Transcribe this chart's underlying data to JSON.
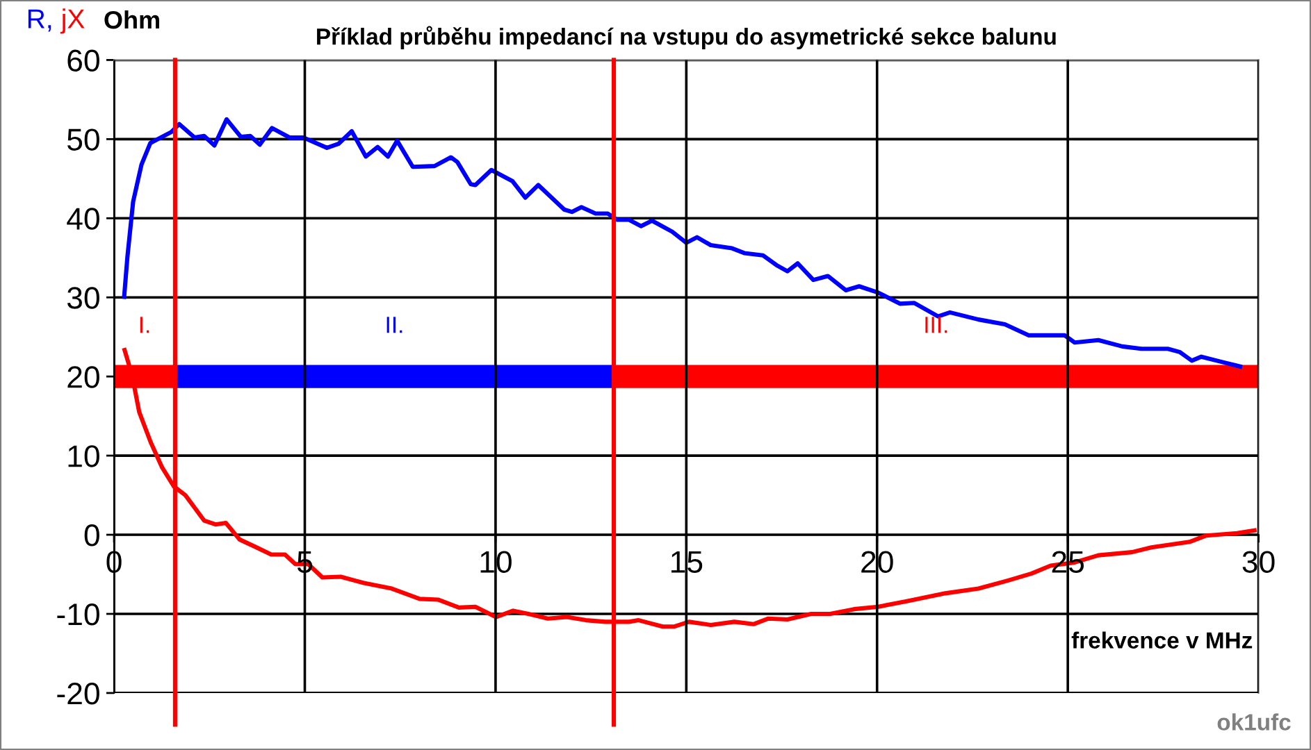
{
  "chart_data": {
    "type": "line",
    "title": "Příklad průběhu impedancí na vstupu do asymetrické sekce balunu",
    "xlabel": "frekvence v MHz",
    "ylabel": "Ohm",
    "xlim": [
      0,
      30
    ],
    "ylim": [
      -20,
      60
    ],
    "xticks": [
      0,
      5,
      10,
      15,
      20,
      25,
      30
    ],
    "yticks": [
      -20,
      -10,
      0,
      10,
      20,
      30,
      40,
      50,
      60
    ],
    "grid": true,
    "legend": "top left",
    "series": [
      {
        "name": "R,",
        "color": "#0000ff",
        "x": [
          0.26,
          0.35,
          0.5,
          0.72,
          0.95,
          1.5,
          1.71,
          2.11,
          2.36,
          2.63,
          2.95,
          3.32,
          3.57,
          3.82,
          4.14,
          4.6,
          4.96,
          5.58,
          5.88,
          6.23,
          6.6,
          6.91,
          7.18,
          7.42,
          7.83,
          8.4,
          8.83,
          9.0,
          9.35,
          9.47,
          9.89,
          10.44,
          10.78,
          11.12,
          11.8,
          12.0,
          12.25,
          12.62,
          12.94,
          13.19,
          13.5,
          13.81,
          14.1,
          14.63,
          15.0,
          15.28,
          15.64,
          16.2,
          16.52,
          17.01,
          17.39,
          17.65,
          17.92,
          18.33,
          18.71,
          19.18,
          19.53,
          20.03,
          20.6,
          20.97,
          21.6,
          21.91,
          22.66,
          23.35,
          23.98,
          24.92,
          25.18,
          25.8,
          26.43,
          26.93,
          27.62,
          27.93,
          28.25,
          28.5,
          29.07,
          29.57
        ],
        "values": [
          29.8,
          35.1,
          42.1,
          46.8,
          49.5,
          50.9,
          51.9,
          50.2,
          50.4,
          49.2,
          52.5,
          50.3,
          50.4,
          49.3,
          51.4,
          50.2,
          50.2,
          48.9,
          49.4,
          51.0,
          47.8,
          49.0,
          47.8,
          49.8,
          46.5,
          46.6,
          47.7,
          47.1,
          44.3,
          44.2,
          46.1,
          44.7,
          42.6,
          44.2,
          41.1,
          40.8,
          41.4,
          40.6,
          40.6,
          39.8,
          39.8,
          39.0,
          39.7,
          38.3,
          36.9,
          37.6,
          36.6,
          36.2,
          35.6,
          35.3,
          34.0,
          33.3,
          34.3,
          32.2,
          32.7,
          30.9,
          31.4,
          30.6,
          29.2,
          29.3,
          27.6,
          28.1,
          27.2,
          26.6,
          25.2,
          25.2,
          24.3,
          24.6,
          23.8,
          23.5,
          23.5,
          23.1,
          22.0,
          22.5,
          21.8,
          21.2
        ]
      },
      {
        "name": "jX",
        "color": "#ff0000",
        "x": [
          0.26,
          0.47,
          0.66,
          0.96,
          1.26,
          1.57,
          1.87,
          2.36,
          2.66,
          2.93,
          3.29,
          3.69,
          4.12,
          4.48,
          4.75,
          5.09,
          5.46,
          5.94,
          6.55,
          7.28,
          8.01,
          8.49,
          9.04,
          9.47,
          10.01,
          10.46,
          10.86,
          11.37,
          11.87,
          12.37,
          12.87,
          13.5,
          13.75,
          14.38,
          14.69,
          15.07,
          15.64,
          16.26,
          16.76,
          17.14,
          17.65,
          18.27,
          18.77,
          19.4,
          20.03,
          20.78,
          21.79,
          22.66,
          23.42,
          24.05,
          24.55,
          25.18,
          25.8,
          26.68,
          27.19,
          28.19,
          28.63,
          29.44,
          29.95
        ],
        "values": [
          23.6,
          20.2,
          15.5,
          11.7,
          8.5,
          6.1,
          5.0,
          1.8,
          1.3,
          1.5,
          -0.6,
          -1.5,
          -2.5,
          -2.5,
          -3.7,
          -3.7,
          -5.4,
          -5.3,
          -6.1,
          -6.8,
          -8.1,
          -8.2,
          -9.2,
          -9.1,
          -10.4,
          -9.6,
          -10.0,
          -10.6,
          -10.4,
          -10.8,
          -11.0,
          -11.0,
          -10.8,
          -11.6,
          -11.6,
          -11.0,
          -11.4,
          -11.0,
          -11.3,
          -10.6,
          -10.7,
          -10.0,
          -10.0,
          -9.4,
          -9.1,
          -8.4,
          -7.4,
          -6.8,
          -5.8,
          -4.9,
          -3.9,
          -3.5,
          -2.6,
          -2.2,
          -1.6,
          -0.9,
          -0.1,
          0.2,
          0.6
        ]
      },
      {
        "color": "#ff0000",
        "x": [
          0,
          1.6
        ],
        "values": [
          20,
          20
        ]
      },
      {
        "color": "#0000ff",
        "x": [
          1.6,
          13.1
        ],
        "values": [
          20,
          20
        ]
      },
      {
        "color": "#ff0000",
        "x": [
          13.1,
          30
        ],
        "values": [
          20,
          20
        ]
      }
    ],
    "ref_lines": [
      {
        "axis": "x",
        "value": 1.6,
        "color": "#ff0000"
      },
      {
        "axis": "x",
        "value": 13.1,
        "color": "#ff0000"
      }
    ],
    "annotations": [
      "I.",
      "II.",
      "III.",
      "ok1ufc"
    ]
  }
}
